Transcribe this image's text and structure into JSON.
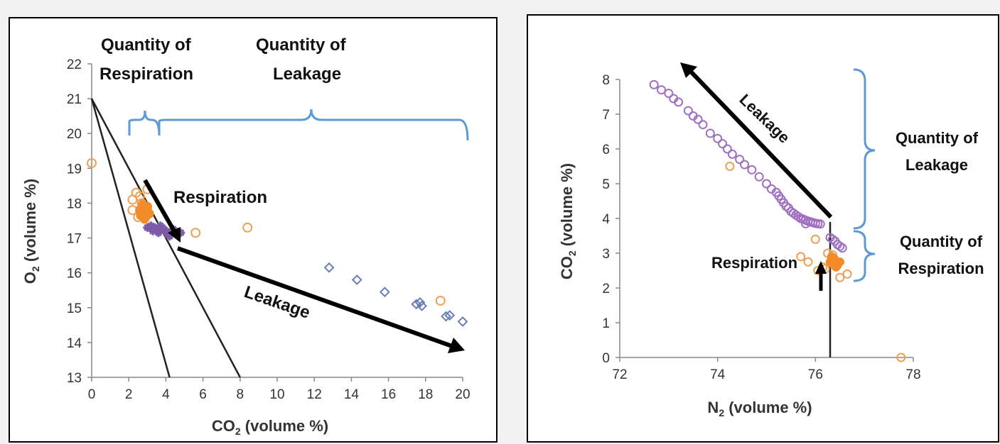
{
  "colors": {
    "orange": "#f0a055",
    "orange_fill": "#f28c28",
    "purple": "#a070c0",
    "purple_dark": "#7c5aa8",
    "diamond": "#6a7fb5",
    "bracket": "#5b9bd5",
    "line": "#222222",
    "arrow": "#000000"
  },
  "chart_data": [
    {
      "type": "scatter",
      "xlabel_main": "CO",
      "xlabel_sub": "2",
      "xlabel_rest": " (volume %)",
      "ylabel_main": "O",
      "ylabel_sub": "2",
      "ylabel_rest": " (volume %)",
      "xlim": [
        0,
        20
      ],
      "ylim": [
        13,
        22
      ],
      "xticks": [
        "0",
        "2",
        "4",
        "6",
        "8",
        "10",
        "12",
        "14",
        "16",
        "18",
        "20"
      ],
      "yticks": [
        "13",
        "14",
        "15",
        "16",
        "17",
        "18",
        "19",
        "20",
        "21",
        "22"
      ],
      "grid": false,
      "reference_lines": [
        {
          "x": [
            0,
            4.2
          ],
          "y": [
            21,
            13
          ]
        },
        {
          "x": [
            0,
            8.0
          ],
          "y": [
            21,
            13
          ]
        }
      ],
      "series": [
        {
          "marker": "open-circle",
          "color": "orange",
          "x": [
            0,
            2.2,
            2.4,
            2.6,
            2.8,
            3.0,
            2.5,
            2.7,
            5.6,
            8.4,
            18.8,
            2.2,
            2.9
          ],
          "y": [
            19.15,
            18.1,
            18.3,
            18.2,
            17.9,
            18.4,
            17.6,
            18.0,
            17.15,
            17.3,
            15.2,
            17.8,
            17.7
          ]
        },
        {
          "marker": "filled-circle",
          "color": "orange_fill",
          "x": [
            2.6,
            2.7,
            2.8,
            2.9,
            3.0,
            2.75,
            2.85,
            3.1,
            2.65,
            3.0
          ],
          "y": [
            17.8,
            17.7,
            17.85,
            17.6,
            17.75,
            17.95,
            17.55,
            17.7,
            17.65,
            17.9
          ]
        },
        {
          "marker": "filled-star",
          "color": "purple_dark",
          "x": [
            3.0,
            3.2,
            3.5,
            3.8,
            4.0,
            4.3,
            4.6,
            3.3,
            3.6,
            3.9,
            4.2,
            4.5,
            4.8,
            3.4,
            3.7,
            4.1,
            4.4
          ],
          "y": [
            17.3,
            17.35,
            17.25,
            17.3,
            17.2,
            17.15,
            17.1,
            17.2,
            17.15,
            17.25,
            17.05,
            17.2,
            17.15,
            17.3,
            17.35,
            17.1,
            17.25
          ]
        },
        {
          "marker": "open-diamond",
          "color": "diamond",
          "x": [
            12.8,
            14.3,
            15.8,
            17.5,
            17.7,
            17.8,
            19.1,
            19.3,
            20.0
          ],
          "y": [
            16.15,
            15.8,
            15.45,
            15.1,
            15.15,
            15.05,
            14.75,
            14.78,
            14.6
          ]
        }
      ],
      "annotations": {
        "respiration": "Respiration",
        "leakage": "Leakage",
        "quantity_respiration_line1": "Quantity of",
        "quantity_respiration_line2": "Respiration",
        "quantity_leakage_line1": "Quantity of",
        "quantity_leakage_line2": "Leakage"
      }
    },
    {
      "type": "scatter",
      "xlabel_main": "N",
      "xlabel_sub": "2",
      "xlabel_rest": " (volume %)",
      "ylabel_main": "CO",
      "ylabel_sub": "2",
      "ylabel_rest": " (volume %)",
      "xlim": [
        72,
        78
      ],
      "ylim": [
        0,
        8
      ],
      "xticks": [
        "72",
        "74",
        "76",
        "78"
      ],
      "yticks": [
        "0",
        "1",
        "2",
        "3",
        "4",
        "5",
        "6",
        "7",
        "8"
      ],
      "grid": false,
      "reference_lines": [
        {
          "x": [
            76.3,
            76.3
          ],
          "y": [
            0,
            3.9
          ]
        }
      ],
      "series": [
        {
          "marker": "open-circle",
          "color": "purple",
          "x": [
            72.7,
            72.85,
            73.0,
            73.1,
            73.2,
            73.4,
            73.5,
            73.6,
            73.7,
            73.85,
            74.0,
            74.1,
            74.2,
            74.3,
            74.45,
            74.55,
            74.7,
            74.85,
            75.0,
            75.1,
            75.2,
            75.25,
            75.3,
            75.35,
            75.4,
            75.45,
            75.5,
            75.55,
            75.6,
            75.65,
            75.7,
            75.75,
            75.8,
            75.85,
            75.9,
            75.95,
            76.0,
            76.05,
            76.1,
            76.3,
            76.35,
            76.4,
            76.45,
            76.5,
            76.55,
            75.8,
            75.9,
            75.7
          ],
          "y": [
            7.85,
            7.7,
            7.6,
            7.45,
            7.35,
            7.1,
            6.95,
            6.85,
            6.7,
            6.45,
            6.3,
            6.15,
            6.0,
            5.85,
            5.7,
            5.55,
            5.4,
            5.2,
            5.0,
            4.85,
            4.75,
            4.65,
            4.55,
            4.45,
            4.35,
            4.3,
            4.2,
            4.15,
            4.1,
            4.05,
            4.0,
            3.98,
            3.95,
            3.92,
            3.9,
            3.88,
            3.86,
            3.85,
            3.84,
            3.45,
            3.4,
            3.35,
            3.25,
            3.2,
            3.15,
            3.85,
            3.9,
            4.0
          ]
        },
        {
          "marker": "open-circle",
          "color": "orange",
          "x": [
            74.25,
            75.7,
            75.85,
            76.0,
            76.15,
            76.25,
            76.05,
            76.5,
            76.65,
            77.75,
            76.35,
            76.2
          ],
          "y": [
            5.5,
            2.9,
            2.75,
            3.4,
            2.6,
            3.0,
            2.5,
            2.3,
            2.4,
            0.0,
            2.95,
            2.55
          ]
        },
        {
          "marker": "filled-circle",
          "color": "orange_fill",
          "x": [
            76.3,
            76.35,
            76.4,
            76.45,
            76.5,
            76.38,
            76.42,
            76.33
          ],
          "y": [
            2.75,
            2.7,
            2.8,
            2.65,
            2.75,
            2.85,
            2.6,
            2.9
          ]
        }
      ],
      "annotations": {
        "respiration": "Respiration",
        "leakage": "Leakage",
        "quantity_leakage_line1": "Quantity of",
        "quantity_leakage_line2": "Leakage",
        "quantity_respiration_line1": "Quantity of",
        "quantity_respiration_line2": "Respiration"
      }
    }
  ]
}
